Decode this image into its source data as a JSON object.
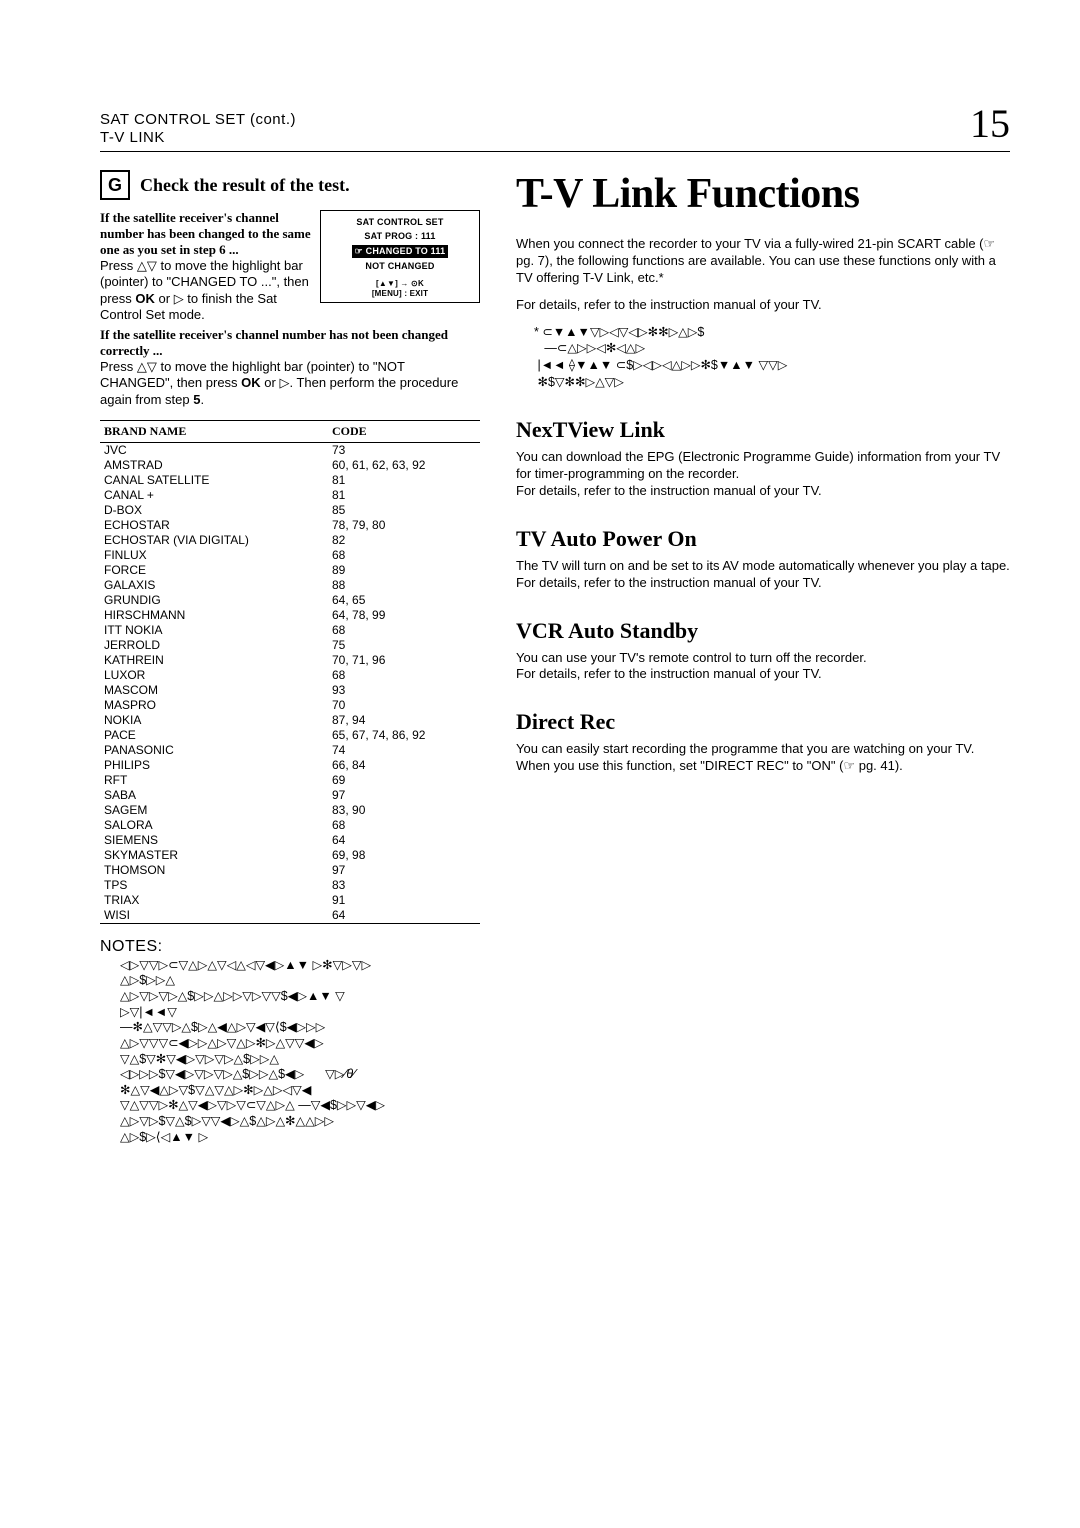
{
  "page": {
    "section_line1": "SAT CONTROL SET (cont.)",
    "section_line2": "T-V LINK",
    "number": "15"
  },
  "step": {
    "badge": "G",
    "title": "Check the result of the test."
  },
  "osd": {
    "title": "SAT CONTROL SET",
    "prog": "SAT PROG : 111",
    "changed": "☞ CHANGED TO 111",
    "not_changed": "NOT CHANGED",
    "legend1": "[▲▼] → ⊙K",
    "legend2": "[MENU] : EXIT"
  },
  "leftText": {
    "sub1": "If the satellite receiver's channel number has been changed to the same one as you set in step 6 ...",
    "p1a": "Press ",
    "p1_sym": "△▽",
    "p1b": " to move the highlight bar (pointer) to \"CHANGED TO ...\", then press ",
    "p1_ok": "OK",
    "p1c": " or ▷ to finish the Sat Control Set mode.",
    "sub2": "If the satellite receiver's channel number has not been changed correctly ...",
    "p2a": "Press ",
    "p2_sym": "△▽",
    "p2b": " to move the highlight bar (pointer) to \"NOT CHANGED\", then press ",
    "p2_ok": "OK",
    "p2c": " or ▷. Then perform the procedure again from step ",
    "p2_step": "5",
    "p2d": "."
  },
  "table": {
    "col_brand": "BRAND NAME",
    "col_code": "CODE",
    "rows": [
      {
        "b": "JVC",
        "c": "73"
      },
      {
        "b": "AMSTRAD",
        "c": "60, 61, 62, 63, 92"
      },
      {
        "b": "CANAL SATELLITE",
        "c": "81"
      },
      {
        "b": "CANAL +",
        "c": "81"
      },
      {
        "b": "D-BOX",
        "c": "85"
      },
      {
        "b": "ECHOSTAR",
        "c": "78, 79, 80"
      },
      {
        "b": "ECHOSTAR (VIA DIGITAL)",
        "c": "82"
      },
      {
        "b": "FINLUX",
        "c": "68"
      },
      {
        "b": "FORCE",
        "c": "89"
      },
      {
        "b": "GALAXIS",
        "c": "88"
      },
      {
        "b": "GRUNDIG",
        "c": "64, 65"
      },
      {
        "b": "HIRSCHMANN",
        "c": "64, 78, 99"
      },
      {
        "b": "ITT NOKIA",
        "c": "68"
      },
      {
        "b": "JERROLD",
        "c": "75"
      },
      {
        "b": "KATHREIN",
        "c": "70, 71, 96"
      },
      {
        "b": "LUXOR",
        "c": "68"
      },
      {
        "b": "MASCOM",
        "c": "93"
      },
      {
        "b": "MASPRO",
        "c": "70"
      },
      {
        "b": "NOKIA",
        "c": "87, 94"
      },
      {
        "b": "PACE",
        "c": "65, 67, 74, 86, 92"
      },
      {
        "b": "PANASONIC",
        "c": "74"
      },
      {
        "b": "PHILIPS",
        "c": "66, 84"
      },
      {
        "b": "RFT",
        "c": "69"
      },
      {
        "b": "SABA",
        "c": "97"
      },
      {
        "b": "SAGEM",
        "c": "83, 90"
      },
      {
        "b": "SALORA",
        "c": "68"
      },
      {
        "b": "SIEMENS",
        "c": "64"
      },
      {
        "b": "SKYMASTER",
        "c": "69, 98"
      },
      {
        "b": "THOMSON",
        "c": "97"
      },
      {
        "b": "TPS",
        "c": "83"
      },
      {
        "b": "TRIAX",
        "c": "91"
      },
      {
        "b": "WISI",
        "c": "64"
      }
    ]
  },
  "notes": {
    "head": "NOTES:"
  },
  "right": {
    "title": "T-V Link Functions",
    "intro1": "When you connect the recorder to your TV via a fully-wired 21-pin SCART cable (☞ pg. 7), the following functions are available. You can use these functions only with a TV offering T-V Link, etc.*",
    "intro2": "For details, refer to the instruction manual of your TV.",
    "features": [
      {
        "title": "NexTView Link",
        "body": "You can download the EPG (Electronic Programme Guide) information from your TV for timer-programming on the recorder.\nFor details, refer to the instruction manual of your TV."
      },
      {
        "title": "TV Auto Power On",
        "body": "The TV will turn on and be set to its AV mode automatically whenever you play a tape.\nFor details, refer to the instruction manual of your TV."
      },
      {
        "title": "VCR Auto Standby",
        "body": "You can use your TV's remote control to turn off the recorder.\nFor details, refer to the instruction manual of your TV."
      },
      {
        "title": "Direct Rec",
        "body": "You can easily start recording the programme that you are watching on your TV. When you use this function, set \"DIRECT REC\" to \"ON\" (☞ pg. 41)."
      }
    ]
  }
}
